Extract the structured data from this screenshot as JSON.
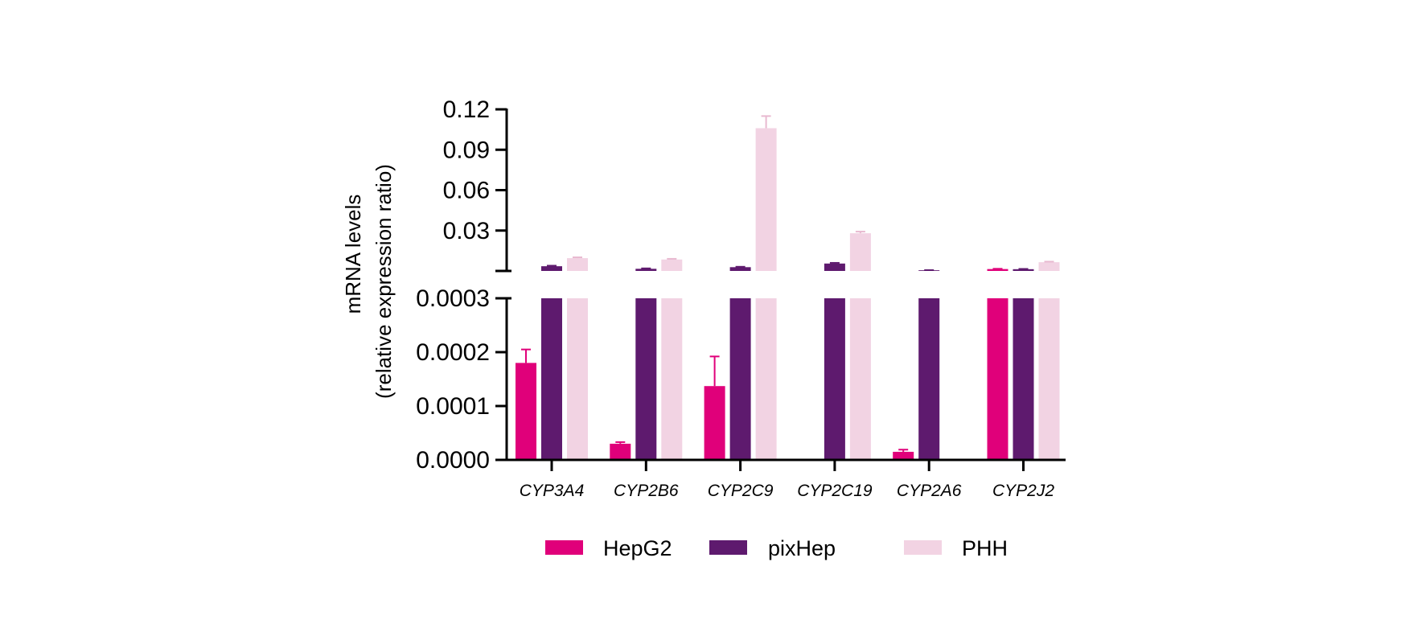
{
  "chart_data": {
    "type": "bar",
    "title": "",
    "ylabel_line1": "mRNA levels",
    "ylabel_line2": "(relative expression ratio)",
    "xlabel": "",
    "axis_break": true,
    "upper_panel": {
      "ylim": [
        0.0,
        0.12
      ],
      "ticks": [
        "0.03",
        "0.06",
        "0.09",
        "0.12"
      ]
    },
    "lower_panel": {
      "ylim": [
        0.0,
        0.0003
      ],
      "ticks": [
        "0.0000",
        "0.0001",
        "0.0002",
        "0.0003"
      ]
    },
    "categories": [
      "CYP3A4",
      "CYP2B6",
      "CYP2C9",
      "CYP2C19",
      "CYP2A6",
      "CYP2J2"
    ],
    "series": [
      {
        "name": "HepG2",
        "color": "#e0007a",
        "values": [
          0.00018,
          3e-05,
          0.000137,
          0.0,
          1.5e-05,
          0.0014
        ],
        "errors": [
          2.5e-05,
          3e-06,
          5.5e-05,
          0.0,
          4e-06,
          0.0002
        ]
      },
      {
        "name": "pixHep",
        "color": "#5e1a6e",
        "values": [
          0.0035,
          0.0016,
          0.0028,
          0.0055,
          0.0005,
          0.0013
        ],
        "errors": [
          0.0004,
          0.0003,
          0.0003,
          0.0005,
          0.0001,
          0.0002
        ]
      },
      {
        "name": "PHH",
        "color": "#f2d3e3",
        "values": [
          0.0095,
          0.0085,
          0.106,
          0.028,
          0.0,
          0.0065
        ],
        "errors": [
          0.0006,
          0.0005,
          0.009,
          0.0012,
          0.0,
          0.0004
        ]
      }
    ],
    "legend_position": "bottom",
    "grid": false
  }
}
